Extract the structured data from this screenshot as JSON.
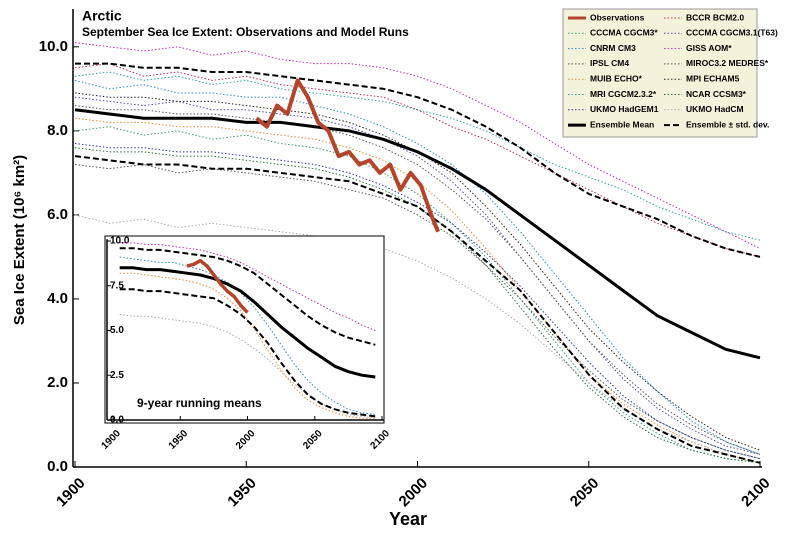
{
  "chart_data": [
    {
      "type": "line",
      "title": "Arctic",
      "subtitle": "September Sea Ice Extent: Observations and Model Runs",
      "x_label": "Year",
      "y_label": "Sea Ice Extent (10⁶ km²)",
      "xlim": [
        1900,
        2100
      ],
      "xticks": [
        1900,
        1950,
        2000,
        2050,
        2100
      ],
      "ylim": [
        0,
        10.9
      ],
      "yticks": [
        {
          "value": 0,
          "label": "0.0"
        },
        {
          "value": 2,
          "label": "2.0"
        },
        {
          "value": 4,
          "label": "4.0"
        },
        {
          "value": 6,
          "label": "6.0"
        },
        {
          "value": 8,
          "label": "8.0"
        },
        {
          "value": 10,
          "label": "10.0"
        }
      ],
      "grid": false,
      "legend": "top-right",
      "x": [
        1900,
        1910,
        1920,
        1930,
        1940,
        1950,
        1960,
        1970,
        1980,
        1990,
        2000,
        2010,
        2020,
        2030,
        2040,
        2050,
        2060,
        2070,
        2080,
        2090,
        2100
      ],
      "series": [
        {
          "name": "Observations",
          "color": "#b5452a",
          "style": "solid",
          "width": 4,
          "x": [
            1953,
            1956,
            1959,
            1962,
            1965,
            1968,
            1971,
            1974,
            1977,
            1980,
            1983,
            1986,
            1989,
            1992,
            1995,
            1998,
            2001,
            2004,
            2006
          ],
          "values": [
            8.3,
            8.1,
            8.6,
            8.4,
            9.2,
            8.8,
            8.2,
            8.0,
            7.4,
            7.5,
            7.2,
            7.3,
            7.0,
            7.2,
            6.6,
            7.0,
            6.7,
            6.0,
            5.6
          ]
        },
        {
          "name": "BCCR BCM2.0",
          "color": "#b02a5a",
          "style": "dotted",
          "width": 1,
          "values": [
            9.5,
            9.6,
            9.3,
            9.4,
            9.2,
            9.3,
            9.1,
            9.0,
            8.9,
            8.8,
            8.5,
            8.1,
            7.8,
            7.4,
            7.0,
            6.6,
            6.2,
            5.8,
            5.5,
            5.2,
            5.0
          ]
        },
        {
          "name": "CCCMA CGCM3*",
          "color": "#3a9a70",
          "style": "dotted",
          "width": 1,
          "values": [
            8.0,
            8.1,
            7.9,
            8.0,
            7.8,
            7.9,
            7.7,
            7.6,
            7.4,
            7.0,
            6.5,
            5.8,
            5.0,
            4.0,
            3.0,
            2.0,
            1.3,
            0.8,
            0.4,
            0.2,
            0.1
          ]
        },
        {
          "name": "CCCMA CGCM3.1(T63)",
          "color": "#4a4aa8",
          "style": "dotted",
          "width": 1,
          "values": [
            8.8,
            8.7,
            8.6,
            8.7,
            8.5,
            8.5,
            8.4,
            8.3,
            8.1,
            7.8,
            7.4,
            6.8,
            6.0,
            5.0,
            4.0,
            3.0,
            2.1,
            1.4,
            0.9,
            0.5,
            0.3
          ]
        },
        {
          "name": "CNRM CM3",
          "color": "#2a8ac8",
          "style": "dotted",
          "width": 1,
          "values": [
            9.2,
            9.0,
            9.1,
            8.9,
            8.9,
            8.8,
            8.8,
            8.6,
            8.4,
            8.1,
            7.7,
            7.2,
            6.5,
            5.6,
            4.6,
            3.6,
            2.6,
            1.8,
            1.1,
            0.6,
            0.3
          ]
        },
        {
          "name": "GISS AOM*",
          "color": "#c02ab0",
          "style": "dotted",
          "width": 1,
          "values": [
            10.1,
            10.0,
            9.9,
            10.0,
            9.8,
            9.9,
            9.7,
            9.6,
            9.6,
            9.5,
            9.3,
            9.0,
            8.6,
            8.2,
            7.7,
            7.2,
            6.8,
            6.4,
            6.0,
            5.6,
            5.2
          ]
        },
        {
          "name": "IPSL CM4",
          "color": "#4a5a4a",
          "style": "dotted",
          "width": 1,
          "values": [
            7.2,
            7.1,
            7.2,
            7.0,
            7.1,
            7.0,
            6.9,
            6.8,
            6.6,
            6.4,
            6.0,
            5.5,
            4.8,
            4.0,
            3.1,
            2.3,
            1.6,
            1.1,
            0.7,
            0.4,
            0.2
          ]
        },
        {
          "name": "MIROC3.2 MEDRES*",
          "color": "#555555",
          "style": "dotted",
          "width": 1,
          "values": [
            8.6,
            8.5,
            8.5,
            8.4,
            8.4,
            8.3,
            8.2,
            8.1,
            7.9,
            7.6,
            7.2,
            6.6,
            5.9,
            5.0,
            4.0,
            3.0,
            2.2,
            1.5,
            1.0,
            0.6,
            0.3
          ]
        },
        {
          "name": "MUIB ECHO*",
          "color": "#e08a30",
          "style": "dotted",
          "width": 1,
          "values": [
            8.3,
            8.2,
            8.2,
            8.1,
            8.1,
            8.0,
            7.9,
            7.8,
            7.6,
            7.3,
            6.8,
            6.1,
            5.2,
            4.2,
            3.2,
            2.2,
            1.5,
            1.0,
            0.6,
            0.3,
            0.1
          ]
        },
        {
          "name": "MPI ECHAM5",
          "color": "#222222",
          "style": "dotted",
          "width": 1,
          "values": [
            8.9,
            8.8,
            8.8,
            8.7,
            8.7,
            8.6,
            8.5,
            8.4,
            8.2,
            7.9,
            7.5,
            7.0,
            6.2,
            5.3,
            4.3,
            3.3,
            2.5,
            1.8,
            1.2,
            0.7,
            0.4
          ]
        },
        {
          "name": "MRI CGCM2.3.2*",
          "color": "#2aa0a0",
          "style": "dotted",
          "width": 1,
          "values": [
            9.3,
            9.4,
            9.2,
            9.3,
            9.1,
            9.2,
            9.0,
            8.9,
            8.8,
            8.7,
            8.5,
            8.3,
            8.0,
            7.6,
            7.2,
            6.9,
            6.6,
            6.2,
            5.9,
            5.6,
            5.4
          ]
        },
        {
          "name": "NCAR CCSM3*",
          "color": "#2a6a3a",
          "style": "dotted",
          "width": 1,
          "values": [
            7.6,
            7.5,
            7.5,
            7.4,
            7.4,
            7.3,
            7.2,
            7.1,
            6.9,
            6.6,
            6.2,
            5.6,
            4.8,
            3.8,
            2.8,
            1.9,
            1.2,
            0.7,
            0.4,
            0.2,
            0.1
          ]
        },
        {
          "name": "UKMO HadGEM1",
          "color": "#2a3a8a",
          "style": "dotted",
          "width": 1,
          "values": [
            7.7,
            7.6,
            7.6,
            7.5,
            7.5,
            7.4,
            7.3,
            7.2,
            7.0,
            6.7,
            6.3,
            5.8,
            5.1,
            4.3,
            3.4,
            2.5,
            1.7,
            1.1,
            0.7,
            0.4,
            0.2
          ]
        },
        {
          "name": "UKMO HadCM",
          "color": "#aaaaaa",
          "style": "dotted",
          "width": 1,
          "values": [
            6.0,
            5.8,
            5.9,
            5.7,
            5.8,
            5.7,
            5.6,
            5.5,
            5.4,
            5.2,
            4.9,
            4.5,
            4.0,
            3.4,
            2.7,
            2.0,
            1.4,
            0.9,
            0.6,
            0.3,
            0.1
          ]
        },
        {
          "name": "Ensemble Mean",
          "color": "#000000",
          "style": "solid",
          "width": 3,
          "values": [
            8.5,
            8.4,
            8.3,
            8.3,
            8.3,
            8.2,
            8.2,
            8.1,
            8.0,
            7.8,
            7.5,
            7.1,
            6.6,
            6.0,
            5.4,
            4.8,
            4.2,
            3.6,
            3.2,
            2.8,
            2.6
          ]
        },
        {
          "name": "Ensemble ± std. dev.",
          "color": "#000000",
          "style": "dashed",
          "width": 2,
          "upper": [
            9.6,
            9.6,
            9.5,
            9.5,
            9.4,
            9.4,
            9.3,
            9.2,
            9.1,
            9.0,
            8.8,
            8.5,
            8.1,
            7.6,
            7.0,
            6.5,
            6.2,
            5.9,
            5.5,
            5.2,
            5.0
          ],
          "lower": [
            7.4,
            7.3,
            7.2,
            7.2,
            7.1,
            7.1,
            7.0,
            6.9,
            6.8,
            6.5,
            6.2,
            5.6,
            4.9,
            4.2,
            3.2,
            2.2,
            1.4,
            0.9,
            0.5,
            0.3,
            0.1
          ]
        }
      ]
    },
    {
      "type": "line",
      "title": "9-year running means",
      "xlim": [
        1900,
        2100
      ],
      "xticks": [
        1900,
        1950,
        2000,
        2050,
        2100
      ],
      "ylim": [
        0,
        10.1
      ],
      "yticks": [
        {
          "value": 0,
          "label": "0.0"
        },
        2.5,
        {
          "value": 5,
          "label": "5.0"
        },
        7.5,
        {
          "value": 10,
          "label": "10.0"
        }
      ],
      "x": [
        1905,
        1915,
        1925,
        1935,
        1945,
        1955,
        1965,
        1975,
        1985,
        1995,
        2005,
        2015,
        2025,
        2035,
        2045,
        2055,
        2065,
        2075,
        2085,
        2095
      ],
      "series": [
        {
          "name": "GISS AOM*",
          "color": "#c02ab0",
          "style": "dotted",
          "width": 1,
          "values": [
            9.9,
            9.9,
            9.8,
            9.8,
            9.7,
            9.6,
            9.5,
            9.3,
            9.1,
            8.8,
            8.4,
            8.0,
            7.6,
            7.2,
            6.8,
            6.4,
            6.0,
            5.7,
            5.3,
            5.0
          ]
        },
        {
          "name": "CNRM CM3",
          "color": "#2a8ac8",
          "style": "dotted",
          "width": 1,
          "values": [
            9.1,
            9.0,
            8.9,
            8.8,
            8.8,
            8.6,
            8.4,
            8.1,
            7.7,
            7.1,
            6.3,
            5.3,
            4.2,
            3.1,
            2.2,
            1.5,
            1.0,
            0.6,
            0.4,
            0.3
          ]
        },
        {
          "name": "MUIB ECHO*",
          "color": "#e08a30",
          "style": "dotted",
          "width": 1,
          "values": [
            8.2,
            8.2,
            8.1,
            8.0,
            7.9,
            7.8,
            7.6,
            7.3,
            6.8,
            6.1,
            5.1,
            3.9,
            2.8,
            1.8,
            1.1,
            0.7,
            0.4,
            0.2,
            0.1,
            0.1
          ]
        },
        {
          "name": "UKMO HadCM",
          "color": "#aaaaaa",
          "style": "dotted",
          "width": 1,
          "values": [
            5.9,
            5.8,
            5.8,
            5.7,
            5.6,
            5.5,
            5.4,
            5.2,
            4.9,
            4.5,
            4.0,
            3.4,
            2.7,
            2.0,
            1.4,
            0.9,
            0.6,
            0.3,
            0.2,
            0.1
          ]
        },
        {
          "name": "Ensemble ± std. dev.",
          "color": "#000000",
          "style": "dashed",
          "width": 2,
          "upper": [
            9.6,
            9.6,
            9.5,
            9.5,
            9.4,
            9.3,
            9.2,
            9.1,
            8.9,
            8.6,
            8.2,
            7.6,
            7.0,
            6.4,
            5.8,
            5.3,
            4.9,
            4.6,
            4.4,
            4.2
          ],
          "lower": [
            7.3,
            7.3,
            7.2,
            7.2,
            7.1,
            7.0,
            6.9,
            6.8,
            6.4,
            5.9,
            5.2,
            4.3,
            3.2,
            2.2,
            1.4,
            0.9,
            0.6,
            0.4,
            0.3,
            0.2
          ]
        },
        {
          "name": "Ensemble Mean",
          "color": "#000000",
          "style": "solid",
          "width": 3,
          "values": [
            8.5,
            8.5,
            8.4,
            8.4,
            8.3,
            8.2,
            8.1,
            7.9,
            7.6,
            7.2,
            6.6,
            5.9,
            5.2,
            4.6,
            4.0,
            3.5,
            3.0,
            2.7,
            2.5,
            2.4
          ]
        },
        {
          "name": "Observations",
          "color": "#b5452a",
          "style": "solid",
          "width": 3.5,
          "x": [
            1955,
            1960,
            1965,
            1970,
            1975,
            1980,
            1985,
            1990,
            1995,
            2000
          ],
          "values": [
            8.6,
            8.7,
            8.9,
            8.6,
            8.1,
            7.6,
            7.2,
            6.9,
            6.4,
            6.0
          ]
        }
      ]
    }
  ]
}
